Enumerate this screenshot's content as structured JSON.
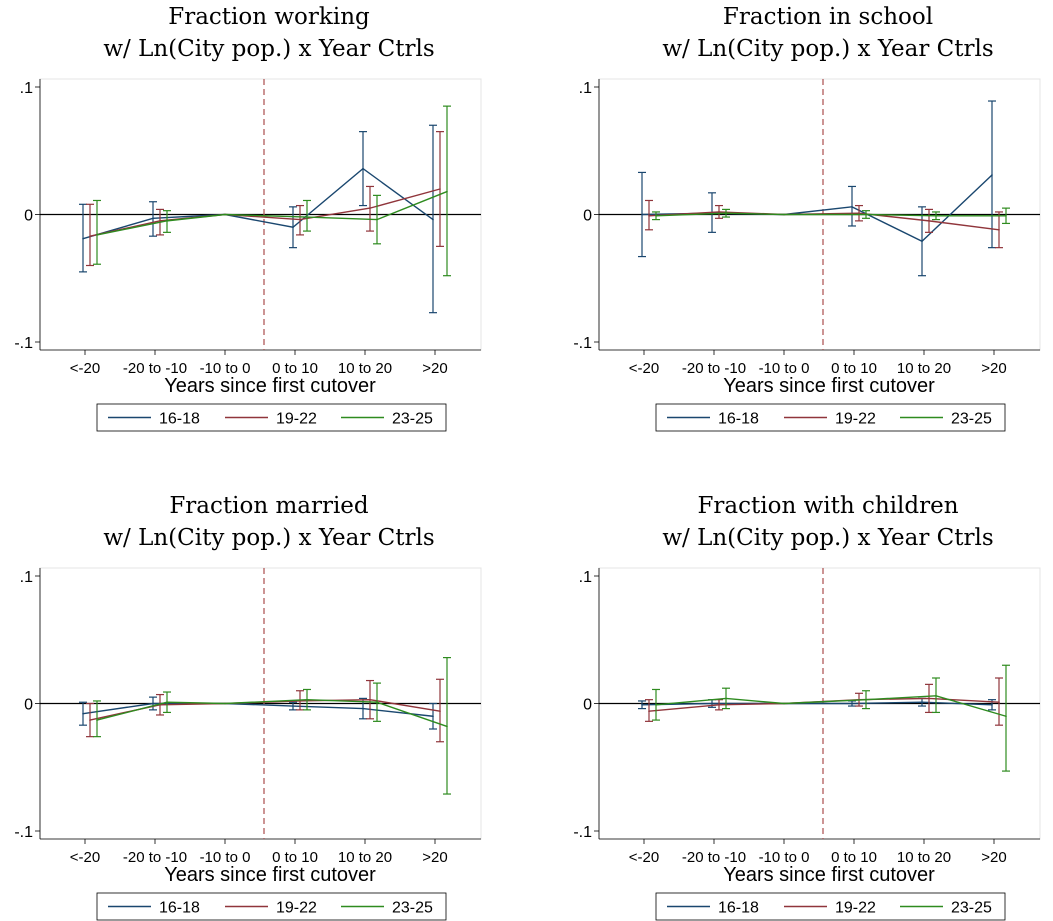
{
  "figure": {
    "panels": [
      "working",
      "school",
      "married",
      "children"
    ]
  },
  "chart_data": [
    {
      "id": "working",
      "type": "line",
      "title": "Fraction working",
      "subtitle": "w/ Ln(City pop.) x Year Ctrls",
      "xlabel": "Years since first cutover",
      "ylabel": "",
      "categories": [
        "<-20",
        "-20 to -10",
        "-10 to 0",
        "0 to 10",
        "10 to 20",
        ">20"
      ],
      "yticks": [
        {
          "value": 0.1,
          "label": ".1"
        },
        {
          "value": 0,
          "label": "0"
        },
        {
          "value": -0.1,
          "label": "-.1"
        }
      ],
      "ylim": [
        -0.1,
        0.1
      ],
      "zero_line": true,
      "event_line_between": [
        "-10 to 0",
        "0 to 10"
      ],
      "legend_position": "bottom",
      "colors": {
        "16-18": "#1a476f",
        "19-22": "#90353b",
        "23-25": "#2e8b1f",
        "event_line": "#b05a5a"
      },
      "series": [
        {
          "name": "16-18",
          "values": [
            -0.019,
            -0.003,
            0,
            -0.01,
            0.036,
            -0.004
          ],
          "ci_low": [
            -0.045,
            -0.017,
            null,
            -0.026,
            0.007,
            -0.077
          ],
          "ci_high": [
            0.008,
            0.01,
            null,
            0.006,
            0.065,
            0.07
          ]
        },
        {
          "name": "19-22",
          "values": [
            -0.017,
            -0.005,
            0,
            -0.004,
            0.005,
            0.02
          ],
          "ci_low": [
            -0.04,
            -0.016,
            null,
            -0.016,
            -0.013,
            -0.025
          ],
          "ci_high": [
            0.008,
            0.004,
            null,
            0.007,
            0.022,
            0.065
          ]
        },
        {
          "name": "23-25",
          "values": [
            -0.016,
            -0.005,
            0,
            -0.002,
            -0.004,
            0.018
          ],
          "ci_low": [
            -0.039,
            -0.014,
            null,
            -0.013,
            -0.023,
            -0.048
          ],
          "ci_high": [
            0.011,
            0.003,
            null,
            0.011,
            0.015,
            0.085
          ]
        }
      ]
    },
    {
      "id": "school",
      "type": "line",
      "title": "Fraction in school",
      "subtitle": "w/ Ln(City pop.) x Year Ctrls",
      "xlabel": "Years since first cutover",
      "ylabel": "",
      "categories": [
        "<-20",
        "-20 to -10",
        "-10 to 0",
        "0 to 10",
        "10 to 20",
        ">20"
      ],
      "yticks": [
        {
          "value": 0.1,
          "label": ".1"
        },
        {
          "value": 0,
          "label": "0"
        },
        {
          "value": -0.1,
          "label": "-.1"
        }
      ],
      "ylim": [
        -0.1,
        0.1
      ],
      "zero_line": true,
      "event_line_between": [
        "-10 to 0",
        "0 to 10"
      ],
      "legend_position": "bottom",
      "colors": {
        "16-18": "#1a476f",
        "19-22": "#90353b",
        "23-25": "#2e8b1f",
        "event_line": "#b05a5a"
      },
      "series": [
        {
          "name": "16-18",
          "values": [
            0,
            0.001,
            0,
            0.006,
            -0.021,
            0.031
          ],
          "ci_low": [
            -0.033,
            -0.014,
            null,
            -0.009,
            -0.048,
            -0.026
          ],
          "ci_high": [
            0.033,
            0.017,
            null,
            0.022,
            0.006,
            0.089
          ]
        },
        {
          "name": "19-22",
          "values": [
            -0.001,
            0.002,
            0,
            0.001,
            -0.005,
            -0.012
          ],
          "ci_low": [
            -0.012,
            -0.003,
            null,
            -0.005,
            -0.014,
            -0.026
          ],
          "ci_high": [
            0.011,
            0.007,
            null,
            0.007,
            0.004,
            0.002
          ]
        },
        {
          "name": "23-25",
          "values": [
            -0.001,
            0.001,
            0,
            0,
            -0.001,
            -0.001
          ],
          "ci_low": [
            -0.004,
            -0.002,
            null,
            -0.003,
            -0.004,
            -0.007
          ],
          "ci_high": [
            0.002,
            0.004,
            null,
            0.003,
            0.002,
            0.005
          ]
        }
      ]
    },
    {
      "id": "married",
      "type": "line",
      "title": "Fraction married",
      "subtitle": "w/ Ln(City pop.) x Year Ctrls",
      "xlabel": "Years since first cutover",
      "ylabel": "",
      "categories": [
        "<-20",
        "-20 to -10",
        "-10 to 0",
        "0 to 10",
        "10 to 20",
        ">20"
      ],
      "yticks": [
        {
          "value": 0.1,
          "label": ".1"
        },
        {
          "value": 0,
          "label": "0"
        },
        {
          "value": -0.1,
          "label": "-.1"
        }
      ],
      "ylim": [
        -0.1,
        0.1
      ],
      "zero_line": true,
      "event_line_between": [
        "-10 to 0",
        "0 to 10"
      ],
      "legend_position": "bottom",
      "colors": {
        "16-18": "#1a476f",
        "19-22": "#90353b",
        "23-25": "#2e8b1f",
        "event_line": "#b05a5a"
      },
      "series": [
        {
          "name": "16-18",
          "values": [
            -0.008,
            0,
            0,
            -0.002,
            -0.004,
            -0.01
          ],
          "ci_low": [
            -0.017,
            -0.005,
            null,
            -0.005,
            -0.012,
            -0.02
          ],
          "ci_high": [
            0.001,
            0.005,
            null,
            0.001,
            0.004,
            0
          ]
        },
        {
          "name": "19-22",
          "values": [
            -0.013,
            -0.001,
            0,
            0.002,
            0.003,
            -0.006
          ],
          "ci_low": [
            -0.026,
            -0.009,
            null,
            -0.005,
            -0.012,
            -0.03
          ],
          "ci_high": [
            0,
            0.007,
            null,
            0.01,
            0.018,
            0.019
          ]
        },
        {
          "name": "23-25",
          "values": [
            -0.013,
            0.001,
            0,
            0.003,
            0.001,
            -0.018
          ],
          "ci_low": [
            -0.026,
            -0.007,
            null,
            -0.005,
            -0.014,
            -0.071
          ],
          "ci_high": [
            0.002,
            0.009,
            null,
            0.011,
            0.016,
            0.036
          ]
        }
      ]
    },
    {
      "id": "children",
      "type": "line",
      "title": "Fraction with children",
      "subtitle": "w/ Ln(City pop.) x Year Ctrls",
      "xlabel": "Years since first cutover",
      "ylabel": "",
      "categories": [
        "<-20",
        "-20 to -10",
        "-10 to 0",
        "0 to 10",
        "10 to 20",
        ">20"
      ],
      "yticks": [
        {
          "value": 0.1,
          "label": ".1"
        },
        {
          "value": 0,
          "label": "0"
        },
        {
          "value": -0.1,
          "label": "-.1"
        }
      ],
      "ylim": [
        -0.1,
        0.1
      ],
      "zero_line": true,
      "event_line_between": [
        "-10 to 0",
        "0 to 10"
      ],
      "legend_position": "bottom",
      "colors": {
        "16-18": "#1a476f",
        "19-22": "#90353b",
        "23-25": "#2e8b1f",
        "event_line": "#b05a5a"
      },
      "series": [
        {
          "name": "16-18",
          "values": [
            -0.001,
            0,
            0,
            0,
            0.001,
            -0.001
          ],
          "ci_low": [
            -0.004,
            -0.003,
            null,
            -0.002,
            -0.002,
            -0.005
          ],
          "ci_high": [
            0.002,
            0.003,
            null,
            0.002,
            0.004,
            0.003
          ]
        },
        {
          "name": "19-22",
          "values": [
            -0.006,
            -0.001,
            0,
            0.003,
            0.004,
            0.001
          ],
          "ci_low": [
            -0.014,
            -0.005,
            null,
            -0.002,
            -0.007,
            -0.017
          ],
          "ci_high": [
            0.003,
            0.003,
            null,
            0.008,
            0.015,
            0.02
          ]
        },
        {
          "name": "23-25",
          "values": [
            -0.001,
            0.004,
            0,
            0.003,
            0.006,
            -0.01
          ],
          "ci_low": [
            -0.013,
            -0.004,
            null,
            -0.004,
            -0.007,
            -0.053
          ],
          "ci_high": [
            0.011,
            0.012,
            null,
            0.01,
            0.02,
            0.03
          ]
        }
      ]
    }
  ]
}
